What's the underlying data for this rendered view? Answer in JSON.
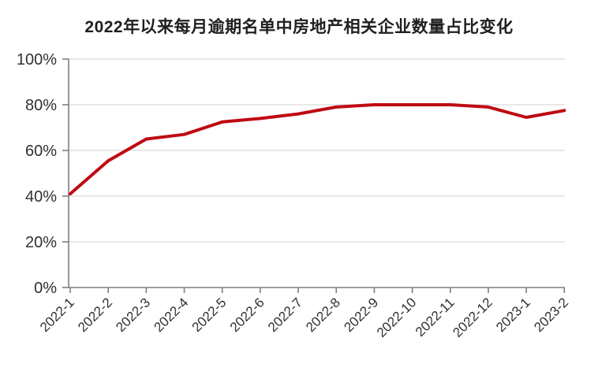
{
  "title": {
    "text": "2022年以来每月逾期名单中房地产相关企业数量占比变化"
  },
  "chart_data": {
    "type": "line",
    "title": "2022年以来每月逾期名单中房地产相关企业数量占比变化",
    "categories": [
      "2022-1",
      "2022-2",
      "2022-3",
      "2022-4",
      "2022-5",
      "2022-6",
      "2022-7",
      "2022-8",
      "2022-9",
      "2022-10",
      "2022-11",
      "2022-12",
      "2023-1",
      "2023-2"
    ],
    "values": [
      41,
      55.5,
      65,
      67,
      72.5,
      74,
      76,
      79,
      80,
      80,
      80,
      79,
      74.5,
      77.5
    ],
    "unit": "%",
    "xlabel": "",
    "ylabel": "",
    "ylim": [
      0,
      100
    ],
    "ytick_labels": [
      "0%",
      "20%",
      "40%",
      "60%",
      "80%",
      "100%"
    ],
    "ytick_values": [
      0,
      20,
      40,
      60,
      80,
      100
    ],
    "xtick_rotation": -45,
    "grid": "horizontal",
    "legend": "none",
    "colors": {
      "line": "#bf0a12",
      "axis": "#7f7f7f",
      "grid": "#d9d9d9",
      "tick_label": "#303030",
      "title": "#1f1f1f",
      "background": "#ffffff"
    }
  }
}
